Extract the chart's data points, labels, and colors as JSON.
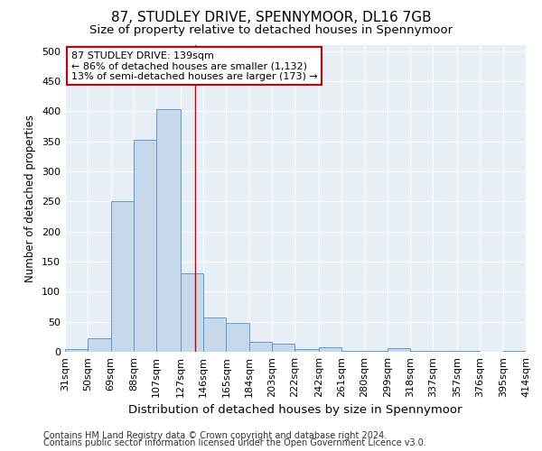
{
  "title": "87, STUDLEY DRIVE, SPENNYMOOR, DL16 7GB",
  "subtitle": "Size of property relative to detached houses in Spennymoor",
  "xlabel": "Distribution of detached houses by size in Spennymoor",
  "ylabel": "Number of detached properties",
  "footer_line1": "Contains HM Land Registry data © Crown copyright and database right 2024.",
  "footer_line2": "Contains public sector information licensed under the Open Government Licence v3.0.",
  "bar_edges": [
    31,
    50,
    69,
    88,
    107,
    127,
    146,
    165,
    184,
    203,
    222,
    242,
    261,
    280,
    299,
    318,
    337,
    357,
    376,
    395,
    414
  ],
  "bar_heights": [
    5,
    22,
    250,
    353,
    403,
    130,
    57,
    48,
    17,
    13,
    5,
    7,
    1,
    1,
    6,
    1,
    1,
    1,
    0,
    2
  ],
  "bar_color": "#c8d8eb",
  "bar_edge_color": "#5b9bd5",
  "property_size": 139,
  "vline_color": "#cc0000",
  "annotation_line1": "87 STUDLEY DRIVE: 139sqm",
  "annotation_line2": "← 86% of detached houses are smaller (1,132)",
  "annotation_line3": "13% of semi-detached houses are larger (173) →",
  "annotation_box_color": "#ffffff",
  "annotation_box_edge": "#cc0000",
  "ylim": [
    0,
    510
  ],
  "yticks": [
    0,
    50,
    100,
    150,
    200,
    250,
    300,
    350,
    400,
    450,
    500
  ],
  "bg_color": "#ffffff",
  "plot_bg_color": "#e8eef5",
  "grid_color": "#ffffff",
  "title_fontsize": 11,
  "subtitle_fontsize": 9.5,
  "xlabel_fontsize": 9.5,
  "ylabel_fontsize": 8.5,
  "tick_fontsize": 8,
  "footer_fontsize": 7
}
